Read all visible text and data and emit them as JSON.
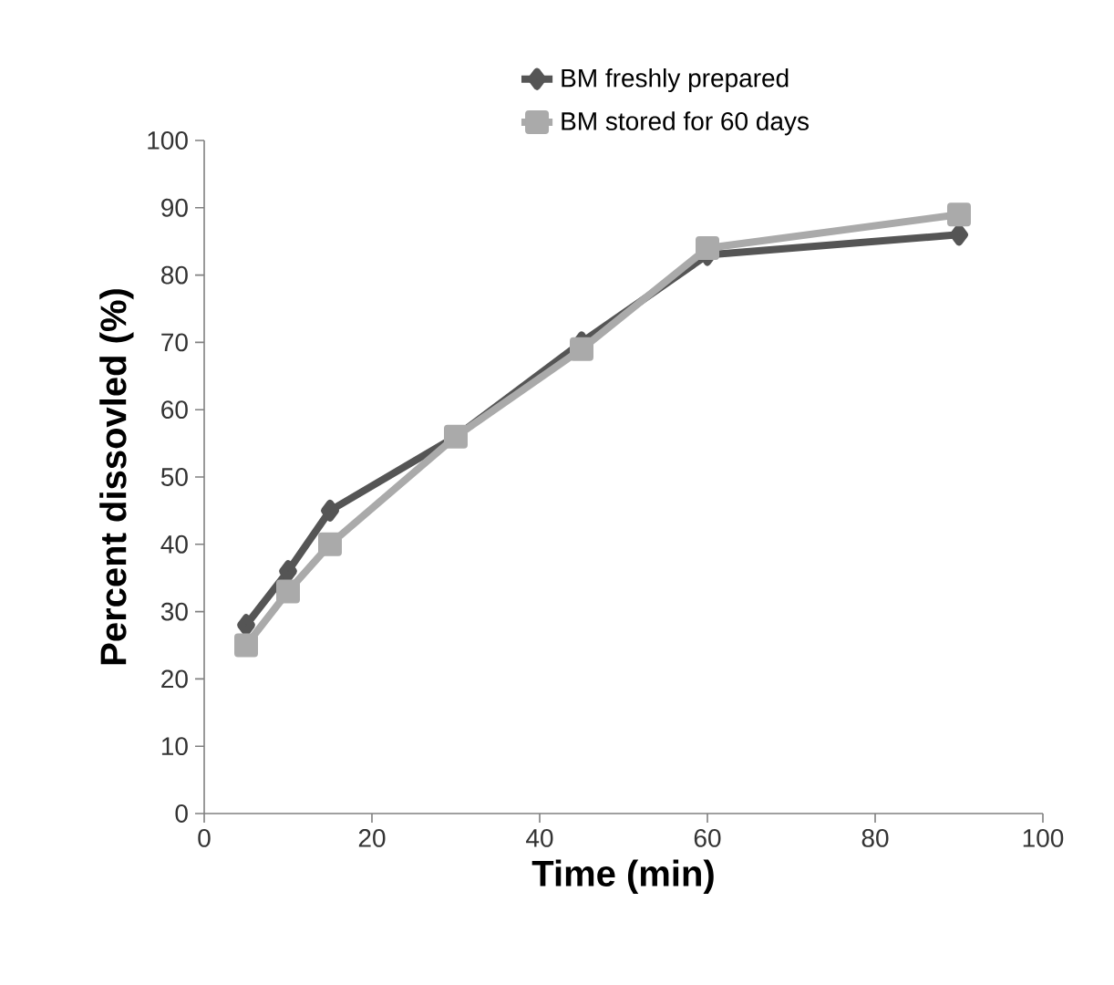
{
  "chart_data": {
    "type": "line",
    "xlabel": "Time (min)",
    "ylabel": "Percent dissovled (%)",
    "xlim": [
      0,
      100
    ],
    "xticks": [
      0,
      20,
      40,
      60,
      80,
      100
    ],
    "ylim": [
      0,
      100
    ],
    "yticks": [
      0,
      10,
      20,
      30,
      40,
      50,
      60,
      70,
      80,
      90,
      100
    ],
    "legend": "top",
    "grid": false,
    "line_style": "solid",
    "series": [
      {
        "name": "BM freshly prepared",
        "color": "#555555",
        "marker": "diamond",
        "x": [
          5,
          10,
          15,
          30,
          45,
          60,
          90
        ],
        "values": [
          28,
          36,
          45,
          56,
          70,
          83,
          86
        ]
      },
      {
        "name": "BM stored for 60 days",
        "color": "#aaaaaa",
        "marker": "square",
        "x": [
          5,
          10,
          15,
          30,
          45,
          60,
          90
        ],
        "values": [
          25,
          33,
          40,
          56,
          69,
          84,
          89
        ]
      }
    ]
  }
}
